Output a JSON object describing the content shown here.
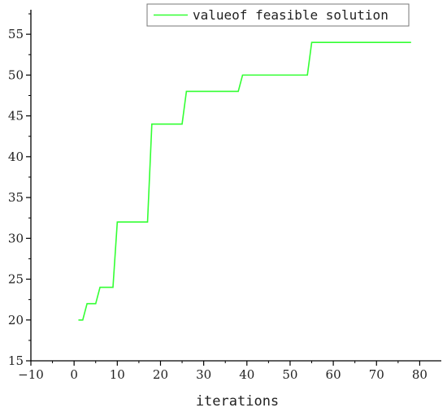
{
  "chart_data": {
    "type": "line",
    "xlabel": "iterations",
    "ylabel": "",
    "xlim": [
      -10,
      85
    ],
    "ylim": [
      15,
      58
    ],
    "x_ticks": [
      -10,
      0,
      10,
      20,
      30,
      40,
      50,
      60,
      70,
      80
    ],
    "y_ticks": [
      15,
      20,
      25,
      30,
      35,
      40,
      45,
      50,
      55
    ],
    "grid": false,
    "legend_position": "top-right",
    "step": "post",
    "series": [
      {
        "name": "valueof feasible solution",
        "color": "#33ff33",
        "x": [
          1,
          2,
          3,
          5,
          6,
          9,
          10,
          17,
          18,
          25,
          26,
          38,
          39,
          54,
          55,
          78
        ],
        "y": [
          20,
          20,
          22,
          22,
          24,
          24,
          32,
          32,
          44,
          44,
          48,
          48,
          50,
          50,
          54,
          54
        ]
      }
    ]
  }
}
